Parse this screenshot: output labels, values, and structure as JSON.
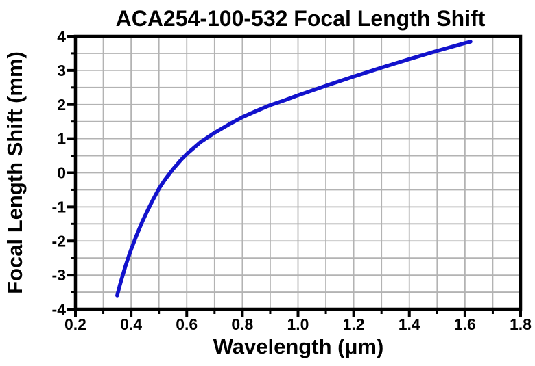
{
  "page": {
    "background": "#ffffff"
  },
  "colors": {
    "axis": "#000000",
    "text": "#000000",
    "grid": "#b3b3b3",
    "curve": "#1212cc",
    "plot_background": "#ffffff"
  },
  "chart_data": {
    "type": "line",
    "title": "ACA254-100-532 Focal Length Shift",
    "xlabel": "Wavelength (μm)",
    "ylabel": "Focal Length Shift (mm)",
    "xlim": [
      0.2,
      1.8
    ],
    "ylim": [
      -4,
      4
    ],
    "grid": {
      "visible": true,
      "x_spacing": 0.1,
      "y_spacing": 0.5,
      "color": "#b3b3b3"
    },
    "legend": {
      "visible": false
    },
    "x_major_ticks": [
      0.2,
      0.4,
      0.6,
      0.8,
      1.0,
      1.2,
      1.4,
      1.6,
      1.8
    ],
    "x_tick_labels": [
      "0.2",
      "0.4",
      "0.6",
      "0.8",
      "1.0",
      "1.2",
      "1.4",
      "1.6",
      "1.8"
    ],
    "x_minor_ticks": [
      0.3,
      0.5,
      0.7,
      0.9,
      1.1,
      1.3,
      1.5,
      1.7
    ],
    "y_major_ticks": [
      4,
      3,
      2,
      1,
      0,
      -1,
      -2,
      -3,
      -4
    ],
    "y_tick_labels": [
      "4",
      "3",
      "2",
      "1",
      "0",
      "-1",
      "-2",
      "-3",
      "-4"
    ],
    "y_minor_ticks": [
      3.5,
      2.5,
      1.5,
      0.5,
      -0.5,
      -1.5,
      -2.5,
      -3.5
    ],
    "series": [
      {
        "name": "Focal Length Shift",
        "color": "#1212cc",
        "x": [
          0.35,
          0.36,
          0.37,
          0.38,
          0.39,
          0.4,
          0.42,
          0.44,
          0.46,
          0.48,
          0.5,
          0.52,
          0.55,
          0.58,
          0.6,
          0.65,
          0.7,
          0.75,
          0.8,
          0.85,
          0.9,
          0.95,
          1.0,
          1.1,
          1.2,
          1.3,
          1.4,
          1.5,
          1.6,
          1.62
        ],
        "y": [
          -3.6,
          -3.28,
          -3.0,
          -2.73,
          -2.48,
          -2.25,
          -1.83,
          -1.44,
          -1.09,
          -0.77,
          -0.47,
          -0.22,
          0.1,
          0.38,
          0.55,
          0.9,
          1.17,
          1.41,
          1.63,
          1.81,
          1.98,
          2.12,
          2.27,
          2.55,
          2.82,
          3.08,
          3.33,
          3.57,
          3.8,
          3.84
        ]
      }
    ]
  }
}
